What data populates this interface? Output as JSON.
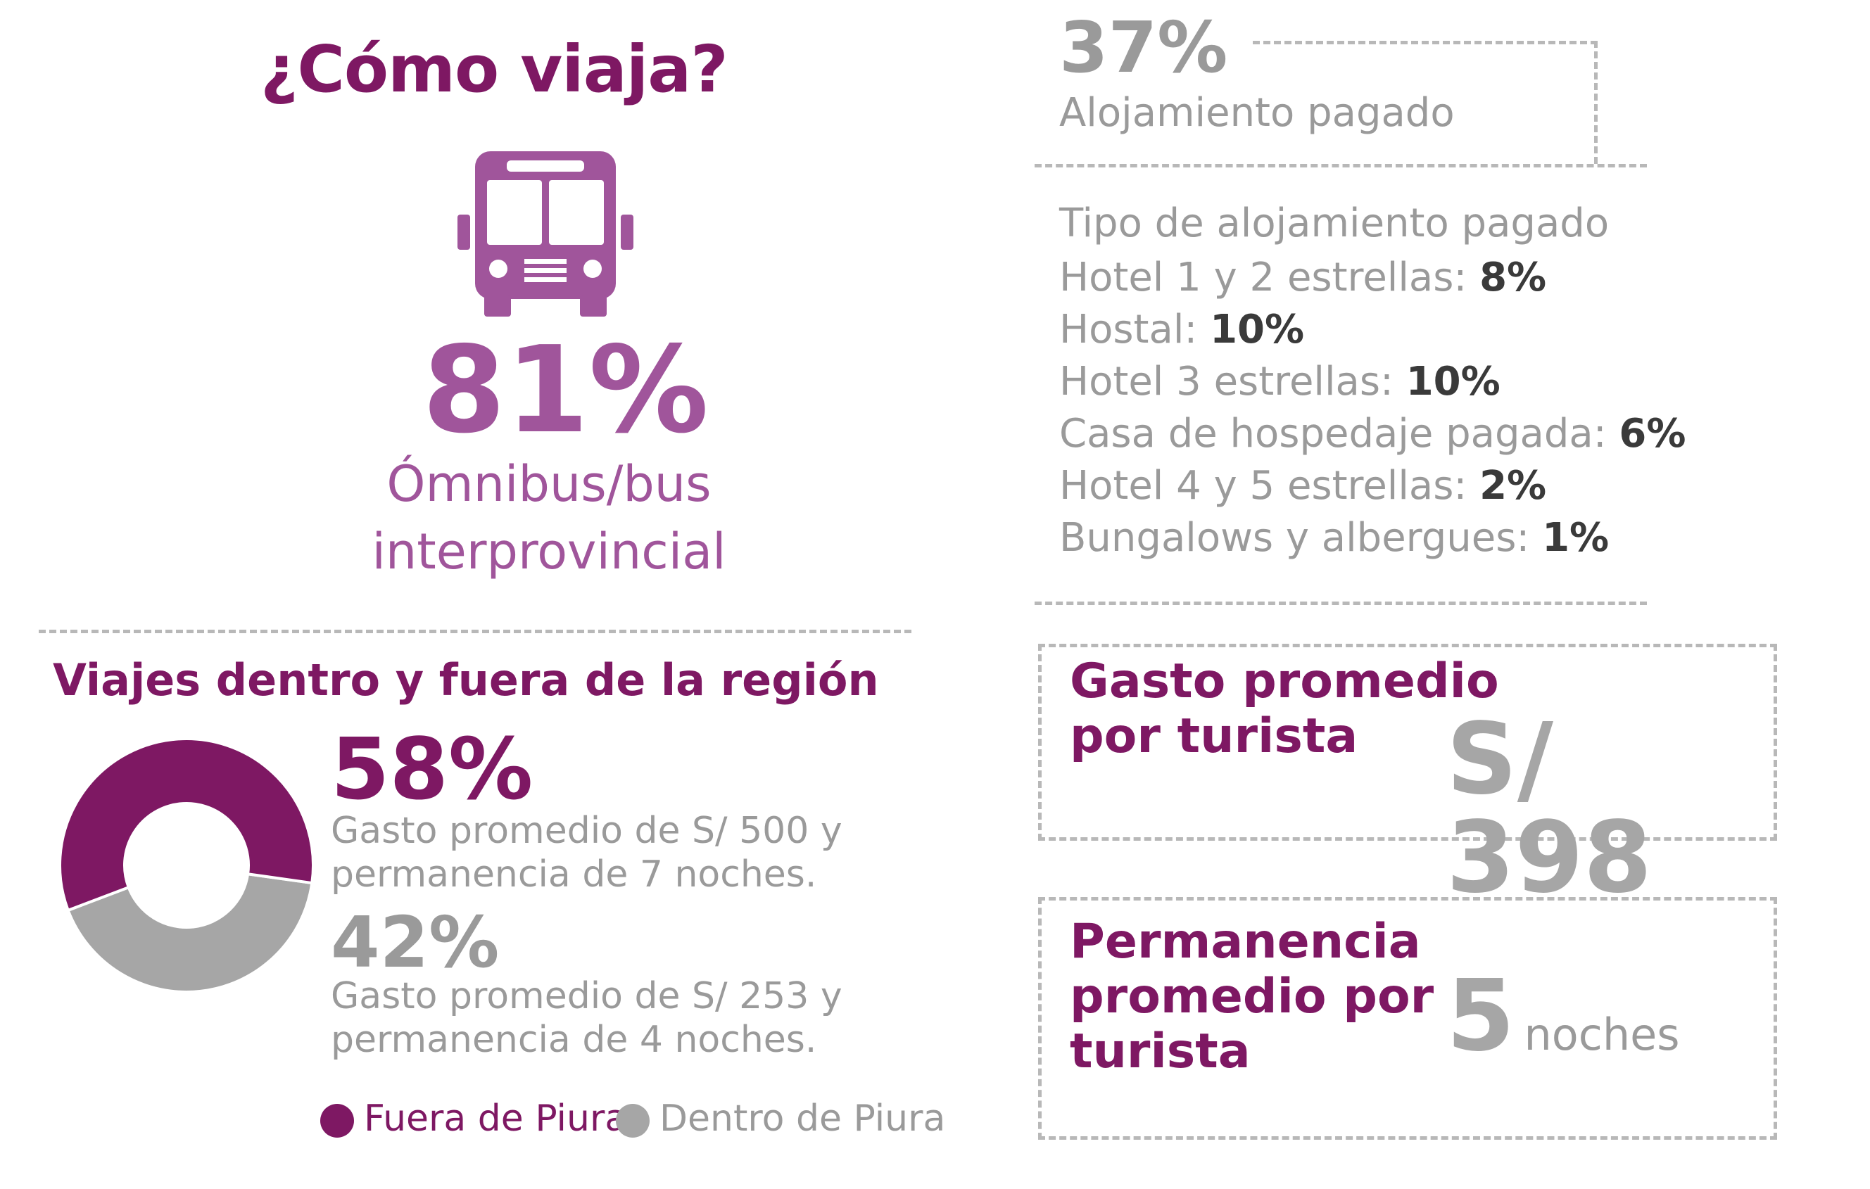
{
  "left": {
    "title": "¿Cómo viaja?",
    "transport_icon": "bus-icon",
    "transport_pct": "81%",
    "transport_label": "Ómnibus/bus interprovincial",
    "trips_title": "Viajes dentro y fuera de la región",
    "segments": [
      {
        "pct": "58%",
        "desc_line1": "Gasto promedio de S/ 500 y",
        "desc_line2": "permanencia de 7 noches."
      },
      {
        "pct": "42%",
        "desc_line1": "Gasto promedio de S/ 253 y",
        "desc_line2": "permanencia de 4 noches."
      }
    ],
    "legend": [
      {
        "label": "Fuera de Piura"
      },
      {
        "label": "Dentro de Piura"
      }
    ]
  },
  "right": {
    "paid_lodging_pct": "37%",
    "paid_lodging_label": "Alojamiento pagado",
    "lodging_type_title": "Tipo de alojamiento pagado",
    "lodging_types": [
      {
        "label": "Hotel 1 y 2 estrellas:",
        "value": "8%"
      },
      {
        "label": "Hostal:",
        "value": "10%"
      },
      {
        "label": "Hotel 3 estrellas:",
        "value": "10%"
      },
      {
        "label": "Casa de hospedaje pagada:",
        "value": "6%"
      },
      {
        "label": "Hotel 4 y 5 estrellas:",
        "value": "2%"
      },
      {
        "label": "Bungalows y albergues:",
        "value": "1%"
      }
    ],
    "spend_title_line1": "Gasto promedio",
    "spend_title_line2": "por turista",
    "spend_value": "S/ 398",
    "stay_title_line1": "Permanencia",
    "stay_title_line2": "promedio por",
    "stay_title_line3": "turista",
    "stay_value": "5",
    "stay_unit": "noches"
  },
  "colors": {
    "purple": "#7e1863",
    "pink": "#a0559b",
    "grey": "#a6a6a6"
  },
  "chart_data": {
    "type": "pie",
    "title": "Viajes dentro y fuera de la región",
    "categories": [
      "Fuera de Piura",
      "Dentro de Piura"
    ],
    "values": [
      58,
      42
    ],
    "colors": [
      "#7e1863",
      "#a6a6a6"
    ],
    "legend": "bottom"
  }
}
